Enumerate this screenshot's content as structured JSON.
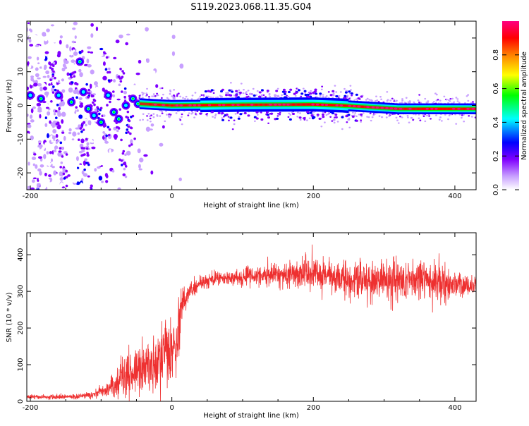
{
  "title": "S119.2023.068.11.35.G04",
  "chart_data": [
    {
      "type": "heatmap",
      "xlabel": "Height of straight line (km)",
      "ylabel": "Frequency (Hz)",
      "xlim": [
        -205,
        430
      ],
      "ylim": [
        -25,
        25
      ],
      "xticks": [
        -200,
        0,
        200,
        400
      ],
      "yticks": [
        -20,
        -10,
        0,
        10,
        20
      ],
      "colorbar": {
        "label": "Normalized spectral amplitude",
        "range": [
          0,
          1
        ],
        "ticks": [
          0.0,
          0.2,
          0.4,
          0.6,
          0.8
        ],
        "tick_labels": [
          "0.0",
          "0.2",
          "0.4",
          "0.6",
          "0.8"
        ],
        "colors": [
          "#ffffff",
          "#c8a0ff",
          "#8000ff",
          "#0000ff",
          "#00ffff",
          "#00ff00",
          "#ffff00",
          "#ff8000",
          "#ff0000",
          "#ff0080"
        ]
      },
      "features": {
        "noise_region_x": [
          -205,
          -45
        ],
        "doppler_track": [
          [
            -45,
            0.5
          ],
          [
            0,
            0.0
          ],
          [
            100,
            0.2
          ],
          [
            200,
            0.3
          ],
          [
            240,
            0.0
          ],
          [
            320,
            -1.0
          ],
          [
            430,
            -1.0
          ]
        ]
      }
    },
    {
      "type": "line",
      "xlabel": "Height of straight line (km)",
      "ylabel": "SNR (10 * v/v)",
      "xlim": [
        -205,
        430
      ],
      "ylim": [
        0,
        460
      ],
      "xticks": [
        -200,
        0,
        200,
        400
      ],
      "yticks": [
        0,
        100,
        200,
        300,
        400
      ],
      "color": "#ee3030",
      "envelope": {
        "x": [
          -205,
          -140,
          -110,
          -90,
          -70,
          -50,
          -30,
          -15,
          5,
          10,
          15,
          25,
          40,
          60,
          100,
          150,
          190,
          220,
          250,
          300,
          350,
          400,
          430
        ],
        "mean": [
          12,
          12,
          18,
          35,
          60,
          85,
          95,
          115,
          140,
          200,
          270,
          300,
          320,
          335,
          340,
          345,
          350,
          340,
          330,
          330,
          330,
          320,
          310
        ],
        "spread": [
          5,
          5,
          8,
          20,
          40,
          50,
          60,
          85,
          90,
          70,
          40,
          22,
          18,
          16,
          18,
          22,
          35,
          35,
          40,
          50,
          45,
          30,
          18
        ]
      }
    }
  ]
}
